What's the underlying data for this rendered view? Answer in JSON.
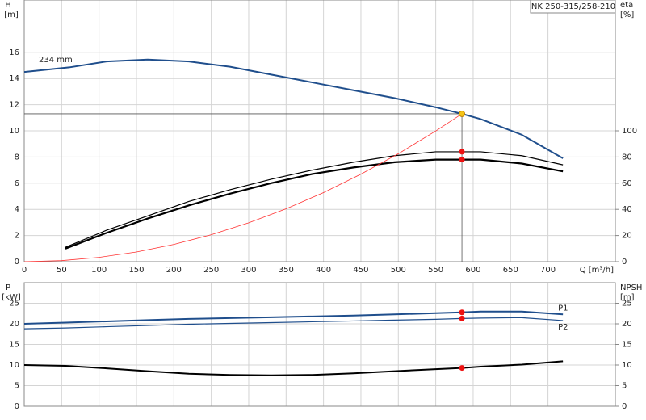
{
  "chart_data": [
    {
      "type": "line",
      "annotation": "234 mm",
      "model": "NK 250-315/258-210",
      "y_label": "H",
      "y_unit": "[m]",
      "y2_label": "eta",
      "y2_unit": "[%]",
      "x_label": "Q [m³/h]",
      "xlim": [
        0,
        790
      ],
      "xticks": [
        0,
        50,
        100,
        150,
        200,
        250,
        300,
        350,
        400,
        450,
        500,
        550,
        600,
        650,
        700
      ],
      "ylim": [
        0,
        20
      ],
      "yticks": [
        0,
        2,
        4,
        6,
        8,
        10,
        12,
        14,
        16
      ],
      "y2lim": [
        0,
        200
      ],
      "y2ticks": [
        0,
        20,
        40,
        60,
        80,
        100
      ],
      "grid": true,
      "series": [
        {
          "color": "#1f4e8c",
          "width": 2,
          "x": [
            0,
            60,
            110,
            165,
            220,
            275,
            330,
            385,
            440,
            495,
            550,
            585,
            610,
            665,
            720
          ],
          "values": [
            14.5,
            14.85,
            15.3,
            15.45,
            15.3,
            14.9,
            14.3,
            13.7,
            13.1,
            12.5,
            11.8,
            11.3,
            10.9,
            9.7,
            7.9
          ]
        },
        {
          "color": "#000000",
          "width": 1.2,
          "axis": "y2",
          "x": [
            55,
            110,
            165,
            220,
            275,
            330,
            385,
            440,
            495,
            550,
            585,
            610,
            665,
            720
          ],
          "values": [
            11,
            24,
            35,
            46,
            55,
            63,
            70,
            76,
            81,
            84,
            84,
            84,
            81,
            74
          ]
        },
        {
          "color": "#000000",
          "width": 2.2,
          "axis": "y2",
          "x": [
            55,
            110,
            165,
            220,
            275,
            330,
            385,
            440,
            495,
            550,
            585,
            610,
            665,
            720
          ],
          "values": [
            10,
            22,
            33,
            43,
            52,
            60,
            67,
            72,
            76,
            78,
            78,
            78,
            75,
            69
          ]
        },
        {
          "color": "#ff3333",
          "width": 0.8,
          "x": [
            0,
            50,
            100,
            150,
            200,
            250,
            300,
            350,
            400,
            450,
            500,
            550,
            585
          ],
          "values": [
            0,
            0.08,
            0.33,
            0.74,
            1.32,
            2.06,
            2.97,
            4.04,
            5.28,
            6.69,
            8.25,
            9.99,
            11.3
          ]
        }
      ],
      "markers": [
        {
          "x": 585,
          "y": 11.3,
          "color": "#f5c518",
          "guides": true
        },
        {
          "x": 585,
          "y": 84,
          "axis": "y2",
          "color": "#ee1111"
        },
        {
          "x": 585,
          "y": 78,
          "axis": "y2",
          "color": "#ee1111"
        }
      ]
    },
    {
      "type": "line",
      "y_label": "P",
      "y_unit": "[kW]",
      "y2_label": "NPSH",
      "y2_unit": "[m]",
      "xlim": [
        0,
        790
      ],
      "ylim": [
        0,
        30
      ],
      "yticks": [
        0,
        5,
        10,
        15,
        20,
        25
      ],
      "y2lim": [
        0,
        30
      ],
      "y2ticks": [
        0,
        5,
        10,
        15,
        20,
        25
      ],
      "grid": true,
      "series": [
        {
          "name": "P1",
          "color": "#1f4e8c",
          "width": 2,
          "x": [
            0,
            55,
            110,
            165,
            220,
            275,
            330,
            385,
            440,
            495,
            550,
            585,
            610,
            665,
            720
          ],
          "values": [
            20,
            20.3,
            20.6,
            20.9,
            21.2,
            21.4,
            21.6,
            21.8,
            22.0,
            22.3,
            22.6,
            22.8,
            23.0,
            23.0,
            22.3
          ]
        },
        {
          "name": "P2",
          "color": "#1f4e8c",
          "width": 1.2,
          "x": [
            0,
            55,
            110,
            165,
            220,
            275,
            330,
            385,
            440,
            495,
            550,
            585,
            610,
            665,
            720
          ],
          "values": [
            18.8,
            19.0,
            19.3,
            19.6,
            19.9,
            20.1,
            20.3,
            20.5,
            20.7,
            20.9,
            21.1,
            21.3,
            21.4,
            21.5,
            20.8
          ]
        },
        {
          "color": "#000000",
          "width": 2,
          "axis": "y2",
          "x": [
            0,
            55,
            110,
            165,
            220,
            275,
            330,
            385,
            440,
            495,
            550,
            585,
            610,
            665,
            720
          ],
          "values": [
            10,
            9.8,
            9.2,
            8.5,
            7.9,
            7.6,
            7.5,
            7.6,
            8.0,
            8.5,
            9.0,
            9.3,
            9.6,
            10.1,
            10.9
          ]
        }
      ],
      "markers": [
        {
          "x": 585,
          "y": 22.8,
          "color": "#ee1111"
        },
        {
          "x": 585,
          "y": 21.3,
          "color": "#ee1111"
        },
        {
          "x": 585,
          "y": 9.3,
          "axis": "y2",
          "color": "#ee1111"
        }
      ]
    }
  ]
}
